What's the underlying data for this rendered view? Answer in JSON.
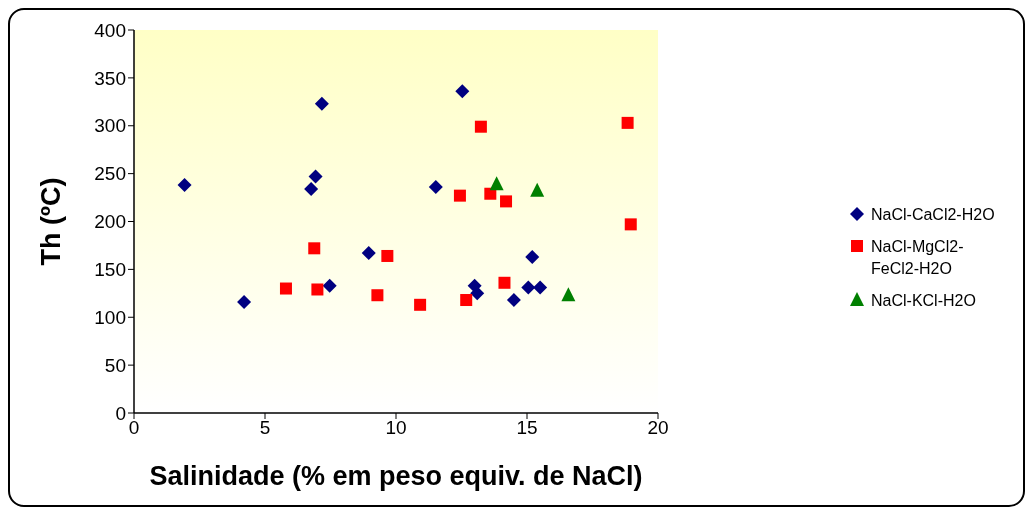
{
  "chart_data": {
    "type": "scatter",
    "xlabel": "Salinidade (% em peso equiv. de NaCl)",
    "ylabel": "Th (ºC)",
    "xlim": [
      0,
      20
    ],
    "xticks": [
      0,
      5,
      10,
      15,
      20
    ],
    "ylim": [
      0,
      400
    ],
    "yticks": [
      0,
      50,
      100,
      150,
      200,
      250,
      300,
      350,
      400
    ],
    "grid": false,
    "legend": "right",
    "series": [
      {
        "name": "NaCl-CaCl2-H2O",
        "color": "#000080",
        "marker": "diamond",
        "x": [
          1.93,
          4.2,
          7.17,
          6.93,
          6.76,
          7.47,
          8.96,
          12.53,
          11.52,
          13.0,
          13.1,
          15.2,
          14.5,
          15.05,
          15.5
        ],
        "values": [
          238,
          116,
          323,
          247,
          234,
          133,
          167,
          336,
          236,
          133,
          125,
          163,
          118,
          131,
          131
        ]
      },
      {
        "name": "NaCl-MgCl2-FeCl2-H2O",
        "color": "#ff0000",
        "marker": "square",
        "x": [
          5.8,
          6.88,
          7.0,
          9.29,
          9.67,
          10.92,
          12.44,
          12.68,
          13.24,
          13.6,
          14.2,
          14.14,
          18.84,
          18.96
        ],
        "values": [
          130,
          172,
          129,
          123,
          164,
          113,
          227,
          118,
          299,
          229,
          221,
          136,
          303,
          197
        ]
      },
      {
        "name": "NaCl-KCl-H2O",
        "color": "#008000",
        "marker": "triangle",
        "x": [
          13.84,
          15.39,
          16.58
        ],
        "values": [
          239,
          232,
          123
        ]
      }
    ]
  }
}
